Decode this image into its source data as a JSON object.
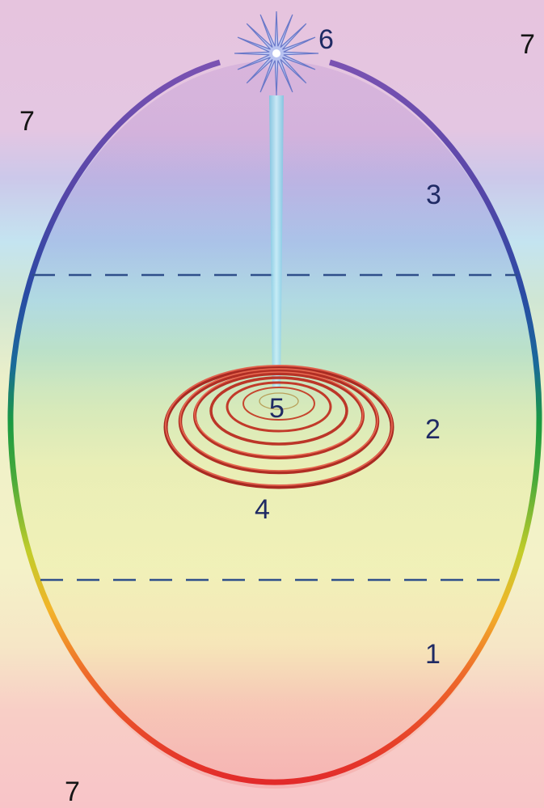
{
  "labels": {
    "star": "6",
    "outside_top_right": "7",
    "outside_top_left": "7",
    "upper_zone": "3",
    "middle_zone": "2",
    "spiral_center": "5",
    "spiral": "4",
    "lower_zone": "1",
    "outside_bottom_left": "7"
  },
  "colors": {
    "background_top": "#e6c4de",
    "background_band_blue": "#c4e4f0",
    "background_band_yellow": "#f4f2c8",
    "background_bottom": "#f8c4c8",
    "divider": "#2f4f8a",
    "spiral": "#c23a2a",
    "beam": "#8fd0e6",
    "star": "#6a78c8"
  }
}
